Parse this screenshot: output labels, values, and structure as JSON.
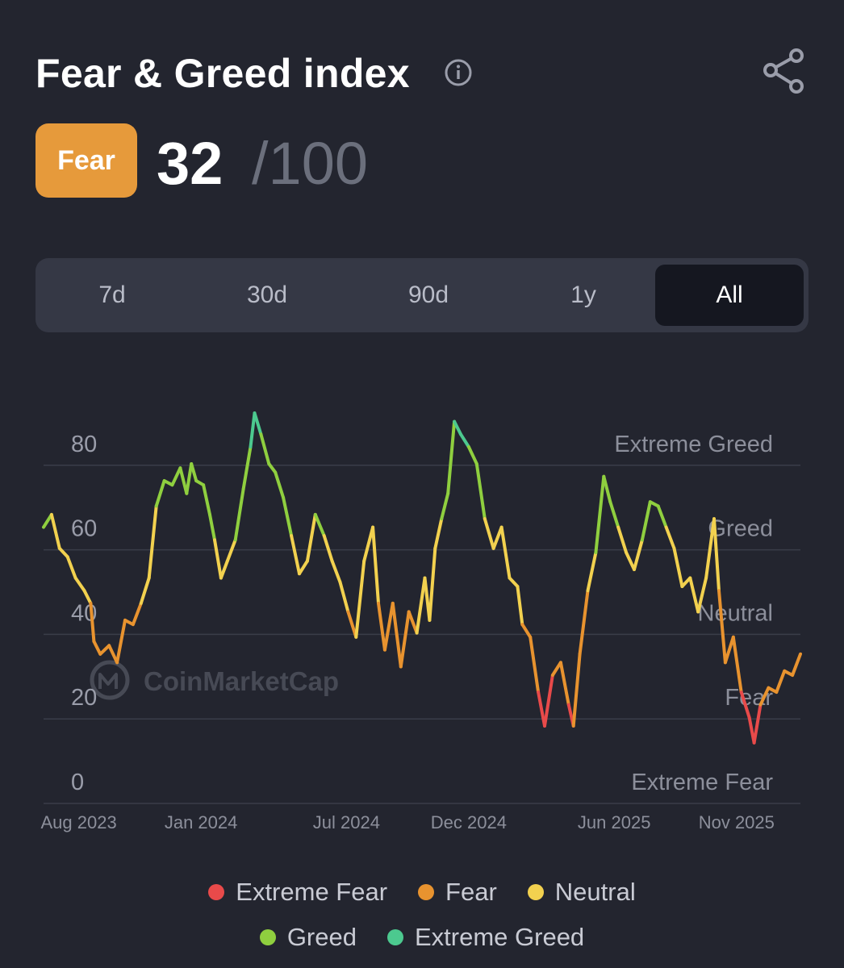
{
  "header": {
    "title": "Fear & Greed index",
    "info_icon": "info-icon",
    "share_icon": "share-icon"
  },
  "score": {
    "label": "Fear",
    "value": "32",
    "max": "/100",
    "label_color": "#e69a3b"
  },
  "tabs": [
    {
      "label": "7d",
      "active": false
    },
    {
      "label": "30d",
      "active": false
    },
    {
      "label": "90d",
      "active": false
    },
    {
      "label": "1y",
      "active": false
    },
    {
      "label": "All",
      "active": true
    }
  ],
  "chart_data": {
    "type": "line",
    "watermark": "CoinMarketCap",
    "ylim": [
      0,
      100
    ],
    "y_ticks": [
      "0",
      "20",
      "40",
      "60",
      "80"
    ],
    "zone_labels": [
      "Extreme Fear",
      "Fear",
      "Neutral",
      "Greed",
      "Extreme Greed"
    ],
    "x_tick_labels": [
      "Aug 2023",
      "Jan 2024",
      "Jul 2024",
      "Dec 2024",
      "Jun 2025",
      "Nov 2025"
    ],
    "x_tick_dates": [
      "2023-08-01",
      "2024-01-01",
      "2024-07-01",
      "2024-12-01",
      "2025-06-01",
      "2025-11-01"
    ],
    "x_range": [
      "2023-06-18",
      "2026-01-20"
    ],
    "series": [
      {
        "points": [
          [
            "2023-06-18",
            60
          ],
          [
            "2023-06-28",
            63
          ],
          [
            "2023-07-08",
            55
          ],
          [
            "2023-07-18",
            53
          ],
          [
            "2023-07-28",
            48
          ],
          [
            "2023-08-08",
            45
          ],
          [
            "2023-08-16",
            42
          ],
          [
            "2023-08-20",
            33
          ],
          [
            "2023-08-28",
            30
          ],
          [
            "2023-09-08",
            32
          ],
          [
            "2023-09-18",
            28
          ],
          [
            "2023-09-28",
            38
          ],
          [
            "2023-10-08",
            37
          ],
          [
            "2023-10-18",
            42
          ],
          [
            "2023-10-28",
            48
          ],
          [
            "2023-11-06",
            65
          ],
          [
            "2023-11-16",
            71
          ],
          [
            "2023-11-26",
            70
          ],
          [
            "2023-12-06",
            74
          ],
          [
            "2023-12-14",
            68
          ],
          [
            "2023-12-20",
            75
          ],
          [
            "2023-12-26",
            71
          ],
          [
            "2024-01-04",
            70
          ],
          [
            "2024-01-12",
            63
          ],
          [
            "2024-01-18",
            57
          ],
          [
            "2024-01-26",
            48
          ],
          [
            "2024-02-03",
            52
          ],
          [
            "2024-02-13",
            57
          ],
          [
            "2024-02-23",
            69
          ],
          [
            "2024-03-03",
            79
          ],
          [
            "2024-03-08",
            87
          ],
          [
            "2024-03-16",
            82
          ],
          [
            "2024-03-26",
            75
          ],
          [
            "2024-04-03",
            73
          ],
          [
            "2024-04-13",
            67
          ],
          [
            "2024-04-23",
            58
          ],
          [
            "2024-05-03",
            49
          ],
          [
            "2024-05-13",
            52
          ],
          [
            "2024-05-23",
            63
          ],
          [
            "2024-06-03",
            58
          ],
          [
            "2024-06-13",
            52
          ],
          [
            "2024-06-23",
            47
          ],
          [
            "2024-07-03",
            40
          ],
          [
            "2024-07-13",
            34
          ],
          [
            "2024-07-23",
            52
          ],
          [
            "2024-08-03",
            60
          ],
          [
            "2024-08-10",
            42
          ],
          [
            "2024-08-18",
            31
          ],
          [
            "2024-08-28",
            42
          ],
          [
            "2024-09-07",
            27
          ],
          [
            "2024-09-17",
            40
          ],
          [
            "2024-09-27",
            35
          ],
          [
            "2024-10-07",
            48
          ],
          [
            "2024-10-13",
            38
          ],
          [
            "2024-10-20",
            55
          ],
          [
            "2024-10-28",
            62
          ],
          [
            "2024-11-05",
            68
          ],
          [
            "2024-11-13",
            85
          ],
          [
            "2024-11-21",
            82
          ],
          [
            "2024-12-01",
            79
          ],
          [
            "2024-12-11",
            75
          ],
          [
            "2024-12-21",
            62
          ],
          [
            "2025-01-01",
            55
          ],
          [
            "2025-01-11",
            60
          ],
          [
            "2025-01-21",
            48
          ],
          [
            "2025-01-31",
            46
          ],
          [
            "2025-02-06",
            37
          ],
          [
            "2025-02-16",
            34
          ],
          [
            "2025-02-26",
            21
          ],
          [
            "2025-03-06",
            13
          ],
          [
            "2025-03-16",
            25
          ],
          [
            "2025-03-26",
            28
          ],
          [
            "2025-04-05",
            18
          ],
          [
            "2025-04-11",
            13
          ],
          [
            "2025-04-19",
            30
          ],
          [
            "2025-04-29",
            45
          ],
          [
            "2025-05-09",
            54
          ],
          [
            "2025-05-19",
            72
          ],
          [
            "2025-05-27",
            66
          ],
          [
            "2025-06-06",
            60
          ],
          [
            "2025-06-16",
            54
          ],
          [
            "2025-06-26",
            50
          ],
          [
            "2025-07-06",
            57
          ],
          [
            "2025-07-16",
            66
          ],
          [
            "2025-07-26",
            65
          ],
          [
            "2025-08-05",
            60
          ],
          [
            "2025-08-15",
            55
          ],
          [
            "2025-08-25",
            46
          ],
          [
            "2025-09-04",
            48
          ],
          [
            "2025-09-14",
            40
          ],
          [
            "2025-09-24",
            48
          ],
          [
            "2025-10-04",
            62
          ],
          [
            "2025-10-10",
            45
          ],
          [
            "2025-10-18",
            28
          ],
          [
            "2025-10-28",
            34
          ],
          [
            "2025-11-07",
            21
          ],
          [
            "2025-11-17",
            15
          ],
          [
            "2025-11-23",
            9
          ],
          [
            "2025-12-01",
            18
          ],
          [
            "2025-12-11",
            22
          ],
          [
            "2025-12-21",
            21
          ],
          [
            "2025-12-31",
            26
          ],
          [
            "2026-01-10",
            25
          ],
          [
            "2026-01-20",
            30
          ]
        ]
      }
    ],
    "zone_colors": {
      "extreme_fear": "#e84a4a",
      "fear": "#e8932f",
      "neutral": "#f2d14f",
      "greed": "#8fcf3f",
      "extreme_greed": "#4cc98f"
    }
  },
  "legend": [
    {
      "label": "Extreme Fear",
      "color": "#e84a4a"
    },
    {
      "label": "Fear",
      "color": "#e8932f"
    },
    {
      "label": "Neutral",
      "color": "#f2d14f"
    },
    {
      "label": "Greed",
      "color": "#8fcf3f"
    },
    {
      "label": "Extreme Greed",
      "color": "#4cc98f"
    }
  ]
}
